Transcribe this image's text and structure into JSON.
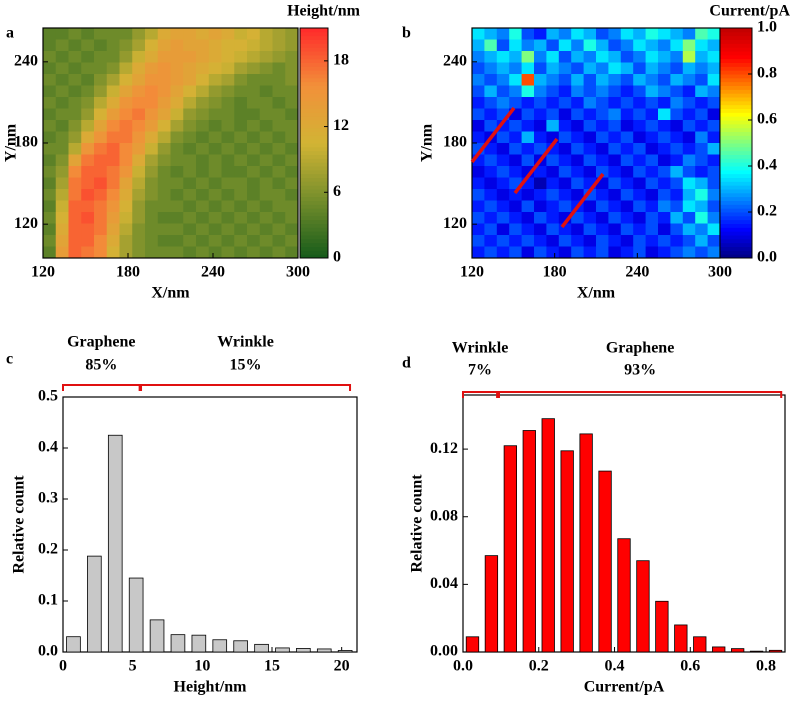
{
  "chart_data": [
    {
      "type": "heatmap",
      "panel_label": "a",
      "xlabel": "X/nm",
      "ylabel": "Y/nm",
      "xlim": [
        120,
        300
      ],
      "ylim": [
        95,
        265
      ],
      "xticks": [
        120,
        180,
        240,
        300
      ],
      "yticks": [
        120,
        180,
        240
      ],
      "colormap": [
        "#145a1a",
        "#738d2b",
        "#d2b434",
        "#f2903a",
        "#ff2a2a"
      ],
      "colorbar": {
        "title": "Height/nm",
        "lim": [
          0,
          21
        ],
        "ticks": [
          0,
          6,
          12,
          18
        ]
      },
      "z": [
        [
          4,
          4,
          5,
          4,
          5,
          5,
          5,
          7,
          9,
          12,
          13,
          13,
          12,
          13,
          12,
          10,
          11,
          9,
          8,
          7
        ],
        [
          4,
          5,
          4,
          5,
          4,
          5,
          6,
          8,
          11,
          13,
          14,
          13,
          13,
          12,
          11,
          11,
          10,
          9,
          8,
          7
        ],
        [
          5,
          4,
          5,
          4,
          5,
          5,
          7,
          10,
          12,
          14,
          14,
          14,
          13,
          12,
          11,
          10,
          9,
          8,
          7,
          6
        ],
        [
          4,
          5,
          4,
          5,
          5,
          6,
          9,
          12,
          14,
          15,
          14,
          13,
          12,
          11,
          10,
          8,
          7,
          6,
          5,
          6
        ],
        [
          5,
          4,
          5,
          4,
          6,
          8,
          11,
          13,
          15,
          15,
          14,
          13,
          11,
          9,
          8,
          6,
          5,
          5,
          5,
          6
        ],
        [
          4,
          5,
          4,
          5,
          7,
          10,
          13,
          15,
          16,
          15,
          13,
          11,
          9,
          7,
          6,
          5,
          5,
          4,
          5,
          5
        ],
        [
          5,
          4,
          5,
          6,
          9,
          12,
          15,
          16,
          16,
          14,
          12,
          9,
          7,
          6,
          5,
          4,
          5,
          5,
          4,
          5
        ],
        [
          4,
          5,
          5,
          7,
          11,
          14,
          16,
          17,
          15,
          13,
          10,
          7,
          6,
          5,
          5,
          4,
          4,
          5,
          5,
          4
        ],
        [
          5,
          4,
          6,
          9,
          13,
          16,
          17,
          16,
          14,
          11,
          8,
          6,
          5,
          4,
          5,
          4,
          5,
          4,
          5,
          5
        ],
        [
          4,
          5,
          7,
          12,
          15,
          17,
          17,
          15,
          12,
          9,
          6,
          5,
          4,
          5,
          4,
          5,
          4,
          5,
          4,
          5
        ],
        [
          5,
          5,
          9,
          15,
          17,
          18,
          16,
          14,
          10,
          7,
          5,
          4,
          5,
          4,
          5,
          4,
          5,
          4,
          5,
          4
        ],
        [
          4,
          6,
          13,
          17,
          18,
          18,
          16,
          12,
          8,
          6,
          5,
          5,
          4,
          5,
          4,
          5,
          4,
          5,
          4,
          5
        ],
        [
          5,
          7,
          16,
          18,
          18,
          17,
          15,
          10,
          7,
          5,
          4,
          5,
          4,
          5,
          4,
          4,
          5,
          4,
          5,
          4
        ],
        [
          4,
          8,
          17,
          18,
          19,
          17,
          13,
          9,
          6,
          5,
          5,
          4,
          5,
          4,
          5,
          5,
          4,
          5,
          4,
          5
        ],
        [
          5,
          9,
          17,
          19,
          18,
          16,
          12,
          8,
          6,
          5,
          4,
          5,
          4,
          5,
          4,
          5,
          4,
          5,
          5,
          4
        ],
        [
          4,
          10,
          18,
          18,
          17,
          15,
          11,
          7,
          5,
          5,
          5,
          4,
          5,
          4,
          5,
          4,
          5,
          4,
          5,
          5
        ],
        [
          5,
          11,
          18,
          19,
          17,
          14,
          10,
          7,
          5,
          4,
          4,
          5,
          4,
          5,
          4,
          5,
          4,
          5,
          4,
          5
        ],
        [
          4,
          12,
          18,
          18,
          17,
          13,
          9,
          6,
          5,
          5,
          5,
          4,
          5,
          4,
          5,
          4,
          5,
          4,
          5,
          4
        ],
        [
          5,
          13,
          18,
          18,
          16,
          12,
          8,
          6,
          5,
          4,
          4,
          5,
          4,
          5,
          4,
          5,
          4,
          5,
          4,
          5
        ],
        [
          4,
          14,
          18,
          17,
          16,
          11,
          8,
          6,
          5,
          5,
          5,
          4,
          5,
          4,
          5,
          4,
          5,
          4,
          5,
          4
        ]
      ]
    },
    {
      "type": "heatmap",
      "panel_label": "b",
      "xlabel": "X/nm",
      "ylabel": "Y/nm",
      "xlim": [
        120,
        300
      ],
      "ylim": [
        95,
        265
      ],
      "xticks": [
        120,
        180,
        240,
        300
      ],
      "yticks": [
        120,
        180,
        240
      ],
      "colormap": [
        "#00007f",
        "#0000ff",
        "#0080ff",
        "#00ffff",
        "#80ff80",
        "#ffff00",
        "#ff8000",
        "#ff0000",
        "#c00000"
      ],
      "colorbar": {
        "title": "Current/pA",
        "lim": [
          0,
          1
        ],
        "ticks": [
          {
            "value": 0,
            "label": "0.0"
          },
          0.2,
          0.4,
          0.6,
          0.8,
          {
            "value": 1,
            "label": "1.0"
          }
        ]
      },
      "z": [
        [
          0.35,
          0.3,
          0.25,
          0.4,
          0.2,
          0.15,
          0.3,
          0.25,
          0.35,
          0.3,
          0.2,
          0.25,
          0.35,
          0.3,
          0.4,
          0.35,
          0.3,
          0.25,
          0.45,
          0.4
        ],
        [
          0.3,
          0.45,
          0.2,
          0.35,
          0.25,
          0.3,
          0.2,
          0.35,
          0.25,
          0.4,
          0.3,
          0.2,
          0.25,
          0.35,
          0.3,
          0.25,
          0.35,
          0.5,
          0.35,
          0.3
        ],
        [
          0.25,
          0.3,
          0.35,
          0.3,
          0.5,
          0.25,
          0.35,
          0.2,
          0.3,
          0.25,
          0.35,
          0.3,
          0.2,
          0.25,
          0.35,
          0.3,
          0.25,
          0.55,
          0.3,
          0.35
        ],
        [
          0.2,
          0.25,
          0.3,
          0.25,
          0.35,
          0.2,
          0.3,
          0.25,
          0.2,
          0.3,
          0.25,
          0.35,
          0.3,
          0.2,
          0.3,
          0.25,
          0.2,
          0.3,
          0.25,
          0.3
        ],
        [
          0.25,
          0.2,
          0.25,
          0.35,
          0.8,
          0.3,
          0.25,
          0.2,
          0.3,
          0.2,
          0.3,
          0.25,
          0.2,
          0.3,
          0.25,
          0.2,
          0.3,
          0.25,
          0.2,
          0.35
        ],
        [
          0.2,
          0.3,
          0.2,
          0.25,
          0.4,
          0.25,
          0.2,
          0.15,
          0.25,
          0.2,
          0.25,
          0.2,
          0.15,
          0.2,
          0.3,
          0.25,
          0.2,
          0.15,
          0.3,
          0.25
        ],
        [
          0.15,
          0.2,
          0.25,
          0.2,
          0.15,
          0.2,
          0.15,
          0.2,
          0.15,
          0.25,
          0.2,
          0.15,
          0.2,
          0.15,
          0.2,
          0.15,
          0.25,
          0.2,
          0.15,
          0.2
        ],
        [
          0.2,
          0.15,
          0.2,
          0.1,
          0.2,
          0.15,
          0.2,
          0.1,
          0.2,
          0.15,
          0.2,
          0.25,
          0.15,
          0.2,
          0.15,
          0.35,
          0.2,
          0.15,
          0.2,
          0.1
        ],
        [
          0.1,
          0.2,
          0.15,
          0.2,
          0.15,
          0.1,
          0.3,
          0.15,
          0.1,
          0.2,
          0.15,
          0.2,
          0.1,
          0.15,
          0.2,
          0.15,
          0.1,
          0.2,
          0.15,
          0.2
        ],
        [
          0.15,
          0.1,
          0.2,
          0.15,
          0.3,
          0.15,
          0.1,
          0.2,
          0.15,
          0.1,
          0.2,
          0.15,
          0.2,
          0.1,
          0.15,
          0.2,
          0.15,
          0.1,
          0.25,
          0.15
        ],
        [
          0.2,
          0.15,
          0.1,
          0.2,
          0.15,
          0.2,
          0.15,
          0.1,
          0.2,
          0.15,
          0.1,
          0.2,
          0.15,
          0.2,
          0.1,
          0.15,
          0.2,
          0.15,
          0.2,
          0.3
        ],
        [
          0.15,
          0.2,
          0.15,
          0.1,
          0.2,
          0.1,
          0.2,
          0.15,
          0.1,
          0.2,
          0.15,
          0.1,
          0.2,
          0.15,
          0.2,
          0.1,
          0.15,
          0.25,
          0.2,
          0.15
        ],
        [
          0.1,
          0.15,
          0.2,
          0.15,
          0.1,
          0.15,
          0.1,
          0.2,
          0.15,
          0.1,
          0.2,
          0.15,
          0.1,
          0.2,
          0.15,
          0.2,
          0.3,
          0.2,
          0.15,
          0.2
        ],
        [
          0.15,
          0.1,
          0.15,
          0.2,
          0.15,
          0.05,
          0.15,
          0.1,
          0.2,
          0.15,
          0.1,
          0.2,
          0.15,
          0.1,
          0.2,
          0.15,
          0.2,
          0.35,
          0.3,
          0.2
        ],
        [
          0.2,
          0.15,
          0.1,
          0.15,
          0.1,
          0.15,
          0.2,
          0.15,
          0.1,
          0.2,
          0.15,
          0.1,
          0.2,
          0.15,
          0.1,
          0.2,
          0.15,
          0.3,
          0.4,
          0.25
        ],
        [
          0.15,
          0.2,
          0.15,
          0.1,
          0.2,
          0.1,
          0.15,
          0.2,
          0.15,
          0.1,
          0.2,
          0.15,
          0.1,
          0.2,
          0.15,
          0.25,
          0.2,
          0.35,
          0.3,
          0.2
        ],
        [
          0.2,
          0.15,
          0.2,
          0.15,
          0.1,
          0.2,
          0.15,
          0.1,
          0.2,
          0.15,
          0.1,
          0.2,
          0.15,
          0.1,
          0.2,
          0.15,
          0.3,
          0.2,
          0.4,
          0.25
        ],
        [
          0.15,
          0.2,
          0.1,
          0.2,
          0.15,
          0.1,
          0.2,
          0.15,
          0.1,
          0.2,
          0.15,
          0.1,
          0.2,
          0.15,
          0.2,
          0.1,
          0.2,
          0.3,
          0.25,
          0.35
        ],
        [
          0.2,
          0.15,
          0.2,
          0.15,
          0.2,
          0.15,
          0.1,
          0.2,
          0.15,
          0.1,
          0.2,
          0.15,
          0.1,
          0.2,
          0.15,
          0.2,
          0.15,
          0.2,
          0.3,
          0.2
        ],
        [
          0.15,
          0.2,
          0.15,
          0.2,
          0.1,
          0.2,
          0.15,
          0.1,
          0.2,
          0.15,
          0.2,
          0.1,
          0.15,
          0.2,
          0.1,
          0.15,
          0.2,
          0.25,
          0.2,
          0.25
        ]
      ]
    },
    {
      "type": "histogram",
      "panel_label": "c",
      "xlabel": "Height/nm",
      "ylabel": "Relative count",
      "color": "#c8c8c8",
      "bins": [
        0,
        1.5,
        3,
        4.5,
        6,
        7.5,
        9,
        10.5,
        12,
        13.5,
        15,
        16.5,
        18,
        19.5,
        21
      ],
      "values": [
        0.03,
        0.188,
        0.425,
        0.145,
        0.063,
        0.034,
        0.033,
        0.024,
        0.022,
        0.015,
        0.008,
        0.007,
        0.006,
        0.003
      ],
      "xlim": [
        0,
        21.1
      ],
      "ylim": [
        0,
        0.5
      ],
      "xticks": [
        0,
        5,
        10,
        15,
        20
      ],
      "yticks": [
        {
          "value": 0,
          "label": "0.0"
        },
        0.1,
        0.2,
        0.3,
        0.4,
        0.5
      ],
      "annotations": [
        {
          "label": "Graphene",
          "percent": "85%",
          "span": [
            0,
            5.5
          ]
        },
        {
          "label": "Wrinkle",
          "percent": "15%",
          "span": [
            5.6,
            20.6
          ]
        }
      ]
    },
    {
      "type": "histogram",
      "panel_label": "d",
      "xlabel": "Current/pA",
      "ylabel": "Relative count",
      "color": "#ff0000",
      "bins": [
        0,
        0.05,
        0.1,
        0.15,
        0.2,
        0.25,
        0.3,
        0.35,
        0.4,
        0.45,
        0.5,
        0.55,
        0.6,
        0.65,
        0.7,
        0.75,
        0.8,
        0.85
      ],
      "values": [
        0.009,
        0.057,
        0.122,
        0.131,
        0.138,
        0.119,
        0.129,
        0.107,
        0.067,
        0.054,
        0.03,
        0.016,
        0.009,
        0.003,
        0.002,
        0.0005,
        0.001
      ],
      "xlim": [
        0,
        0.85
      ],
      "ylim": [
        0,
        0.152
      ],
      "xticks": [
        {
          "value": 0,
          "label": "0.0"
        },
        0.2,
        0.4,
        0.6,
        0.8
      ],
      "yticks": [
        {
          "value": 0,
          "label": "0.00"
        },
        {
          "value": 0.04,
          "label": "0.04"
        },
        {
          "value": 0.08,
          "label": "0.08"
        },
        {
          "value": 0.12,
          "label": "0.12"
        }
      ],
      "annotations": [
        {
          "label": "Wrinkle",
          "percent": "7%",
          "span": [
            0,
            0.09
          ]
        },
        {
          "label": "Graphene",
          "percent": "93%",
          "span": [
            0.095,
            0.84
          ]
        }
      ]
    }
  ]
}
